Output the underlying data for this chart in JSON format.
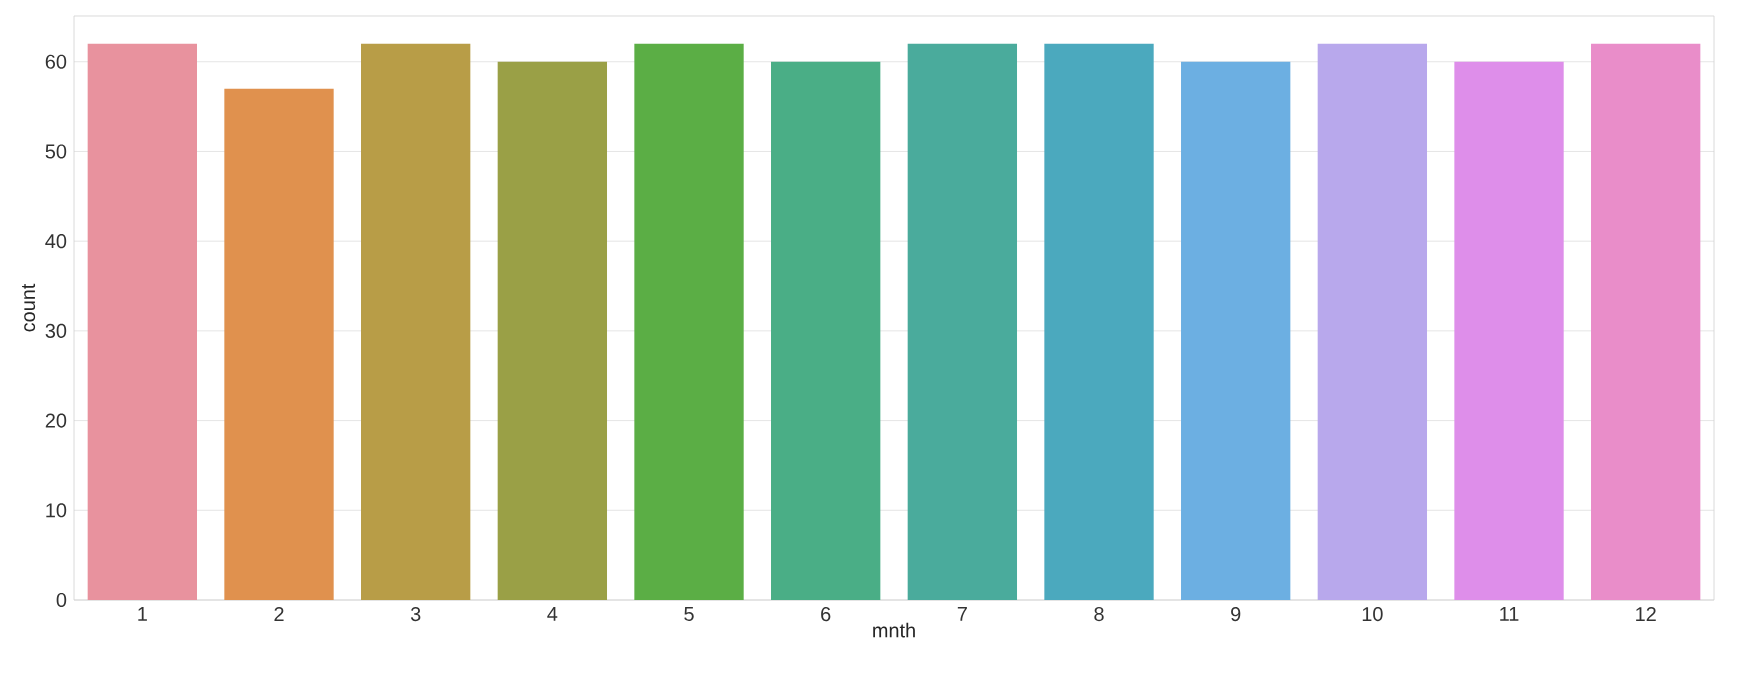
{
  "chart_data": {
    "type": "bar",
    "xlabel": "mnth",
    "ylabel": "count",
    "categories": [
      "1",
      "2",
      "3",
      "4",
      "5",
      "6",
      "7",
      "8",
      "9",
      "10",
      "11",
      "12"
    ],
    "values": [
      62,
      57,
      62,
      60,
      62,
      60,
      62,
      62,
      60,
      62,
      60,
      62
    ],
    "colors": [
      "#e8929e",
      "#e0914e",
      "#b89d47",
      "#9aa046",
      "#5bae45",
      "#4aae86",
      "#4aab9c",
      "#4ba9be",
      "#6cafe2",
      "#b8a8ec",
      "#de8eea",
      "#e98dc9"
    ],
    "ylim": [
      0,
      65.1
    ],
    "yticks": [
      0,
      10,
      20,
      30,
      40,
      50,
      60
    ],
    "grid": "y"
  }
}
